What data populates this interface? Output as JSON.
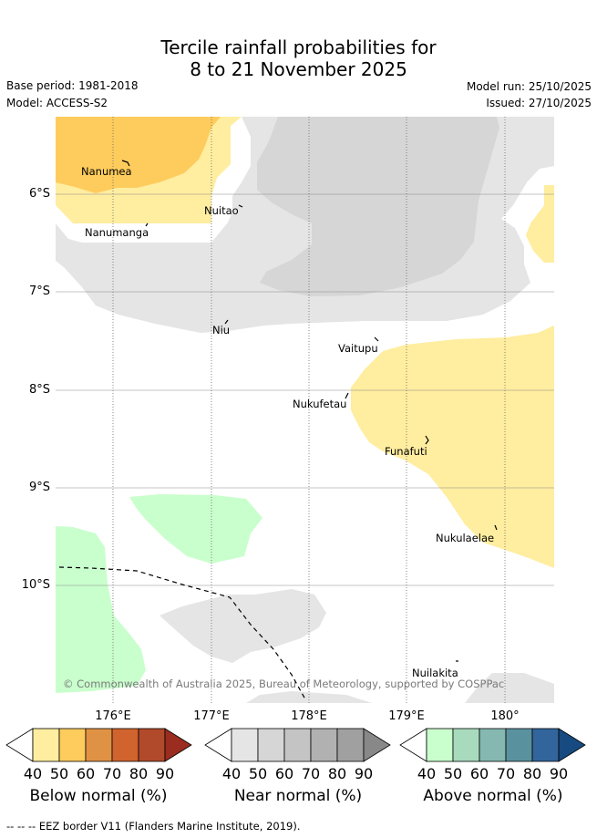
{
  "title_line1": "Tercile rainfall probabilities for",
  "title_line2": "8 to 21 November 2025",
  "base_period": "Base period: 1981-2018",
  "model": "Model: ACCESS-S2",
  "model_run": "Model run: 25/10/2025",
  "issued": "Issued: 27/10/2025",
  "lat_labels": [
    "6°S",
    "7°S",
    "8°S",
    "9°S",
    "10°S"
  ],
  "lon_labels": [
    "176°E",
    "177°E",
    "178°E",
    "179°E",
    "180°"
  ],
  "places": [
    "Nanumea",
    "Nuitao",
    "Nanumanga",
    "Niu",
    "Vaitupu",
    "Nukufetau",
    "Funafuti",
    "Nukulaelae",
    "Nuilakita"
  ],
  "copyright": "© Commonwealth of Australia 2025, Bureau of Meteorology, supported by COSPPac",
  "colorbars": [
    {
      "label": "Below normal (%)",
      "colors": [
        "#ffeda0",
        "#fecc5c",
        "#e09244",
        "#d0632e",
        "#b14a2a",
        "#9a2d1f"
      ]
    },
    {
      "label": "Near normal (%)",
      "colors": [
        "#e5e5e5",
        "#d6d6d6",
        "#c4c4c4",
        "#b1b1b1",
        "#a0a0a0",
        "#888888"
      ]
    },
    {
      "label": "Above normal (%)",
      "colors": [
        "#c9ffcc",
        "#a8dbbd",
        "#85b8b0",
        "#5a919e",
        "#32659c",
        "#174a80"
      ]
    }
  ],
  "colorbar_ticks": [
    "40",
    "50",
    "60",
    "70",
    "80",
    "90"
  ],
  "footer": "-- -- -- EEZ border V11 (Flanders Marine Institute, 2019)."
}
